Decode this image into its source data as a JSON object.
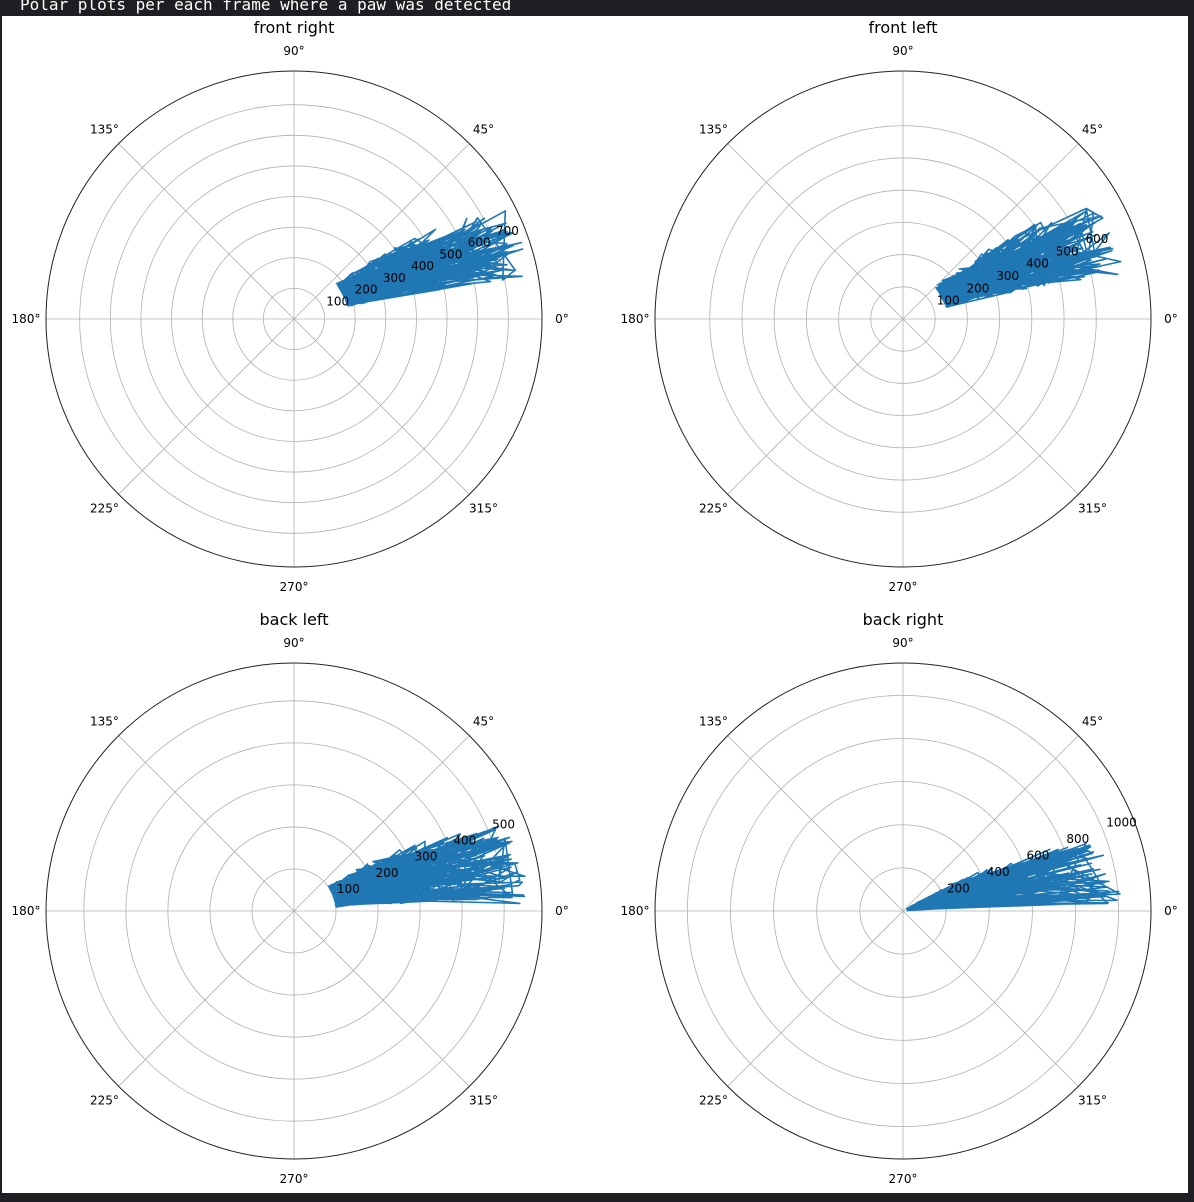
{
  "header": {
    "text": "Polar plots per each frame where a paw was detected"
  },
  "chart_data": [
    {
      "type": "polar-line",
      "title": "front right",
      "theta_ticks": [
        "0°",
        "45°",
        "90°",
        "135°",
        "180°",
        "225°",
        "270°",
        "315°"
      ],
      "r_ticks": [
        100,
        200,
        300,
        400,
        500,
        600,
        700
      ],
      "r_tick_labels": [
        "100",
        "200",
        "300",
        "400",
        "500",
        "600",
        "700"
      ],
      "rlim": [
        0,
        810
      ],
      "grid": true,
      "color": "#1f77b4",
      "r_range": [
        180,
        790
      ],
      "theta_range_deg": [
        4,
        40
      ]
    },
    {
      "type": "polar-line",
      "title": "front left",
      "theta_ticks": [
        "0°",
        "45°",
        "90°",
        "135°",
        "180°",
        "225°",
        "270°",
        "315°"
      ],
      "r_ticks": [
        100,
        200,
        300,
        400,
        500,
        600
      ],
      "r_tick_labels": [
        "100",
        "200",
        "300",
        "400",
        "500",
        "600"
      ],
      "rlim": [
        0,
        770
      ],
      "grid": true,
      "color": "#1f77b4",
      "r_range": [
        140,
        700
      ],
      "theta_range_deg": [
        5,
        45
      ]
    },
    {
      "type": "polar-line",
      "title": "back left",
      "theta_ticks": [
        "0°",
        "45°",
        "90°",
        "135°",
        "180°",
        "225°",
        "270°",
        "315°"
      ],
      "r_ticks": [
        100,
        200,
        300,
        400,
        500
      ],
      "r_tick_labels": [
        "100",
        "200",
        "300",
        "400",
        "500"
      ],
      "rlim": [
        0,
        590
      ],
      "grid": true,
      "color": "#1f77b4",
      "r_range": [
        100,
        560
      ],
      "theta_range_deg": [
        -5,
        36
      ]
    },
    {
      "type": "polar-line",
      "title": "back right",
      "theta_ticks": [
        "0°",
        "45°",
        "90°",
        "135°",
        "180°",
        "225°",
        "270°",
        "315°"
      ],
      "r_ticks": [
        200,
        400,
        600,
        800,
        1000
      ],
      "r_tick_labels": [
        "200",
        "400",
        "600",
        "800",
        "1000"
      ],
      "rlim": [
        0,
        1150
      ],
      "grid": true,
      "color": "#1f77b4",
      "r_range": [
        20,
        1010
      ],
      "theta_range_deg": [
        -4,
        32
      ]
    }
  ]
}
